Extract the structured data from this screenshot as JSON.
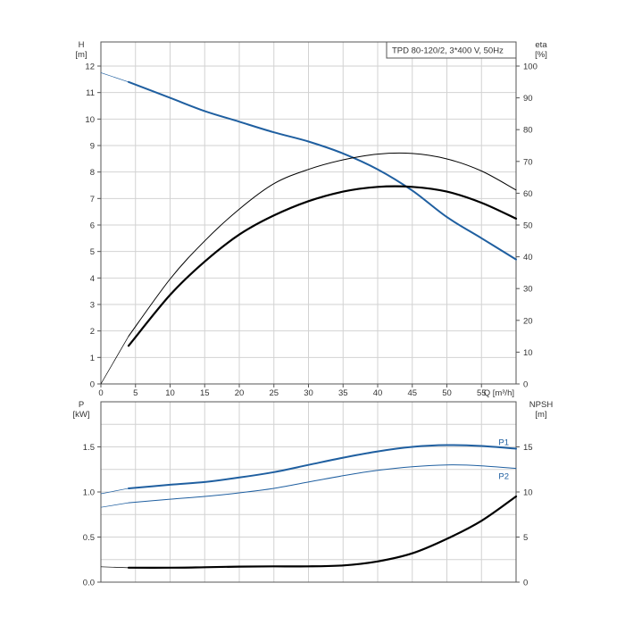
{
  "chart_data": [
    {
      "type": "line",
      "title": "TPD 80-120/2, 3*400 V, 50Hz",
      "xlabel": "Q [m³/h]",
      "x_ticks": [
        0,
        5,
        10,
        15,
        20,
        25,
        30,
        35,
        40,
        45,
        50,
        55
      ],
      "xlim": [
        0,
        60
      ],
      "grid": true,
      "y_left": {
        "label": "H",
        "unit": "[m]",
        "ylim": [
          0,
          12
        ],
        "ticks": [
          0,
          1,
          2,
          3,
          4,
          5,
          6,
          7,
          8,
          9,
          10,
          11,
          12
        ]
      },
      "y_right": {
        "label": "eta",
        "unit": "[%]",
        "ylim": [
          0,
          100
        ],
        "ticks": [
          0,
          10,
          20,
          30,
          40,
          50,
          60,
          70,
          80,
          90,
          100
        ]
      },
      "series": [
        {
          "axis": "left",
          "color": "#1f5fa0",
          "width": 2,
          "extension_from_zero": true,
          "points": [
            [
              0,
              11.75
            ],
            [
              4,
              11.4
            ],
            [
              10,
              10.8
            ],
            [
              15,
              10.3
            ],
            [
              20,
              9.9
            ],
            [
              25,
              9.5
            ],
            [
              30,
              9.15
            ],
            [
              35,
              8.7
            ],
            [
              40,
              8.1
            ],
            [
              45,
              7.3
            ],
            [
              50,
              6.3
            ],
            [
              55,
              5.5
            ],
            [
              60,
              4.7
            ]
          ]
        },
        {
          "axis": "right",
          "color": "#000000",
          "width": 1,
          "extension_from_zero": true,
          "points": [
            [
              0,
              0
            ],
            [
              4,
              15
            ],
            [
              10,
              33
            ],
            [
              15,
              45
            ],
            [
              20,
              55
            ],
            [
              25,
              63
            ],
            [
              30,
              67.5
            ],
            [
              35,
              70.5
            ],
            [
              40,
              72.3
            ],
            [
              45,
              72.5
            ],
            [
              50,
              70.8
            ],
            [
              55,
              67
            ],
            [
              60,
              61
            ]
          ]
        },
        {
          "axis": "right",
          "color": "#000000",
          "width": 2.2,
          "extension_from_zero": false,
          "points": [
            [
              4,
              12
            ],
            [
              10,
              28
            ],
            [
              15,
              38.5
            ],
            [
              20,
              47
            ],
            [
              25,
              53
            ],
            [
              30,
              57.5
            ],
            [
              35,
              60.5
            ],
            [
              40,
              62
            ],
            [
              45,
              62
            ],
            [
              50,
              60.5
            ],
            [
              55,
              57
            ],
            [
              60,
              52
            ]
          ]
        }
      ]
    },
    {
      "type": "line",
      "title": "",
      "xlabel": "",
      "x_ticks": [],
      "xlim": [
        0,
        60
      ],
      "grid": true,
      "y_left": {
        "label": "P",
        "unit": "[kW]",
        "ylim": [
          0,
          2
        ],
        "ticks": [
          0.0,
          0.5,
          1.0,
          1.5
        ],
        "tick_labels": [
          "0.0",
          "0.5",
          "1.0",
          "1.5"
        ]
      },
      "y_right": {
        "label": "NPSH",
        "unit": "[m]",
        "ylim": [
          0,
          20
        ],
        "ticks": [
          0,
          5,
          10,
          15
        ]
      },
      "series": [
        {
          "name": "P1",
          "axis": "left",
          "color": "#1f5fa0",
          "width": 2,
          "extension_from_zero": true,
          "points": [
            [
              0,
              0.98
            ],
            [
              4,
              1.04
            ],
            [
              10,
              1.08
            ],
            [
              15,
              1.11
            ],
            [
              20,
              1.16
            ],
            [
              25,
              1.22
            ],
            [
              30,
              1.3
            ],
            [
              35,
              1.38
            ],
            [
              40,
              1.45
            ],
            [
              45,
              1.5
            ],
            [
              50,
              1.52
            ],
            [
              55,
              1.51
            ],
            [
              60,
              1.48
            ]
          ]
        },
        {
          "name": "P2",
          "axis": "left",
          "color": "#1f5fa0",
          "width": 1,
          "extension_from_zero": true,
          "points": [
            [
              0,
              0.83
            ],
            [
              4,
              0.88
            ],
            [
              10,
              0.92
            ],
            [
              15,
              0.95
            ],
            [
              20,
              0.99
            ],
            [
              25,
              1.04
            ],
            [
              30,
              1.11
            ],
            [
              35,
              1.18
            ],
            [
              40,
              1.24
            ],
            [
              45,
              1.28
            ],
            [
              50,
              1.3
            ],
            [
              55,
              1.29
            ],
            [
              60,
              1.26
            ]
          ]
        },
        {
          "axis": "right",
          "color": "#000000",
          "width": 2.2,
          "extension_from_zero": true,
          "points": [
            [
              0,
              1.7
            ],
            [
              4,
              1.6
            ],
            [
              10,
              1.6
            ],
            [
              15,
              1.65
            ],
            [
              20,
              1.72
            ],
            [
              25,
              1.75
            ],
            [
              30,
              1.75
            ],
            [
              35,
              1.85
            ],
            [
              40,
              2.3
            ],
            [
              45,
              3.2
            ],
            [
              50,
              4.8
            ],
            [
              55,
              6.8
            ],
            [
              60,
              9.5
            ]
          ]
        }
      ]
    }
  ]
}
